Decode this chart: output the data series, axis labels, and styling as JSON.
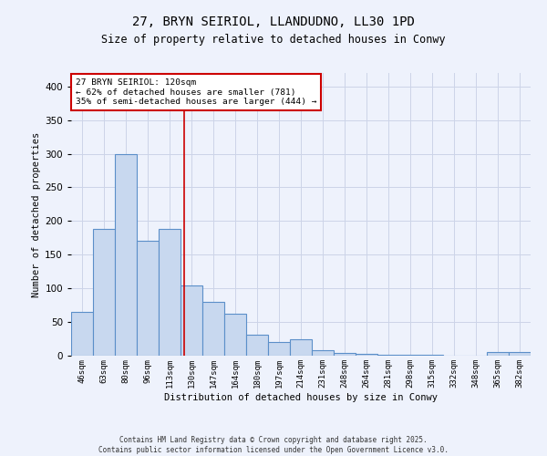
{
  "title_line1": "27, BRYN SEIRIOL, LLANDUDNO, LL30 1PD",
  "title_line2": "Size of property relative to detached houses in Conwy",
  "xlabel": "Distribution of detached houses by size in Conwy",
  "ylabel": "Number of detached properties",
  "categories": [
    "46sqm",
    "63sqm",
    "80sqm",
    "96sqm",
    "113sqm",
    "130sqm",
    "147sqm",
    "164sqm",
    "180sqm",
    "197sqm",
    "214sqm",
    "231sqm",
    "248sqm",
    "264sqm",
    "281sqm",
    "298sqm",
    "315sqm",
    "332sqm",
    "348sqm",
    "365sqm",
    "382sqm"
  ],
  "values": [
    65,
    188,
    300,
    171,
    188,
    105,
    80,
    62,
    31,
    21,
    25,
    8,
    4,
    3,
    2,
    1,
    1,
    0,
    0,
    5,
    5
  ],
  "bar_color": "#c8d8ef",
  "bar_edge_color": "#5b8fc9",
  "grid_color": "#ccd4e8",
  "vline_x_index": 4.65,
  "vline_color": "#cc0000",
  "annotation_text": "27 BRYN SEIRIOL: 120sqm\n← 62% of detached houses are smaller (781)\n35% of semi-detached houses are larger (444) →",
  "annotation_box_color": "#cc0000",
  "ylim": [
    0,
    420
  ],
  "yticks": [
    0,
    50,
    100,
    150,
    200,
    250,
    300,
    350,
    400
  ],
  "footer_line1": "Contains HM Land Registry data © Crown copyright and database right 2025.",
  "footer_line2": "Contains public sector information licensed under the Open Government Licence v3.0.",
  "bg_color": "#eef2fc",
  "plot_bg_color": "#eef2fc"
}
